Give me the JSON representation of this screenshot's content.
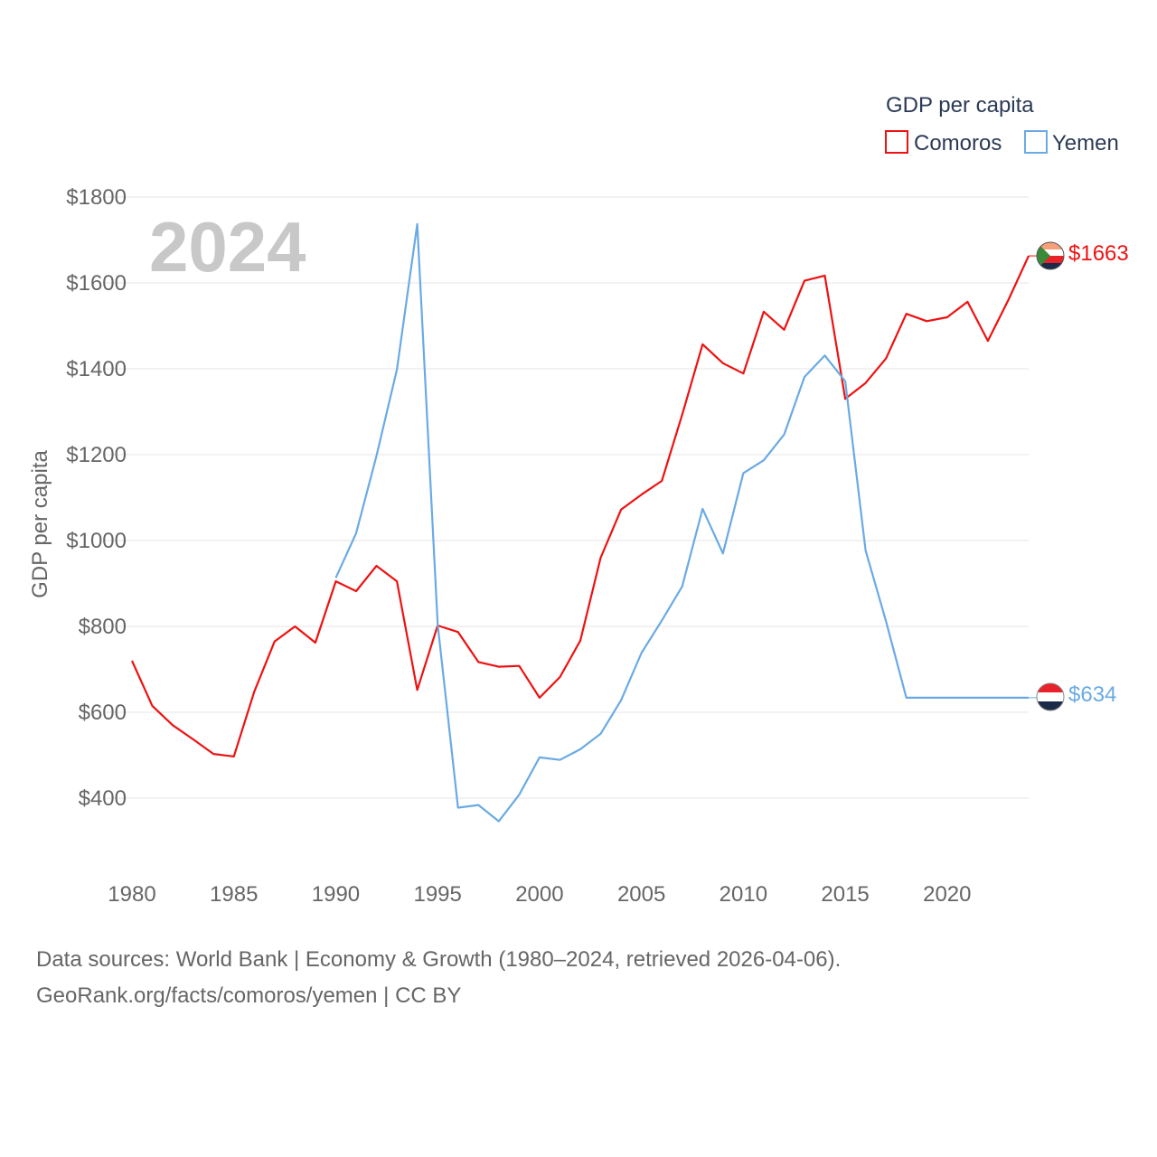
{
  "chart_data": {
    "type": "line",
    "title": "GDP per capita",
    "ylabel": "GDP per capita",
    "xlabel": "",
    "current_year_label": "2024",
    "xlim": [
      1980,
      2024
    ],
    "ylim": [
      290,
      1830
    ],
    "y_ticks": [
      400,
      600,
      800,
      1000,
      1200,
      1400,
      1600,
      1800
    ],
    "y_tick_labels": [
      "$400",
      "$600",
      "$800",
      "$1000",
      "$1200",
      "$1400",
      "$1600",
      "$1800"
    ],
    "x_ticks": [
      1980,
      1985,
      1990,
      1995,
      2000,
      2005,
      2010,
      2015,
      2020
    ],
    "x_tick_labels": [
      "1980",
      "1985",
      "1990",
      "1995",
      "2000",
      "2005",
      "2010",
      "2015",
      "2020"
    ],
    "grid": true,
    "legend_position": "top-right",
    "series": [
      {
        "name": "Comoros",
        "color": "#ee1111",
        "end_label": "$1663",
        "x": [
          1980,
          1981,
          1982,
          1983,
          1984,
          1985,
          1986,
          1987,
          1988,
          1989,
          1990,
          1991,
          1992,
          1993,
          1994,
          1995,
          1996,
          1997,
          1998,
          1999,
          2000,
          2001,
          2002,
          2003,
          2004,
          2005,
          2006,
          2007,
          2008,
          2009,
          2010,
          2011,
          2012,
          2013,
          2014,
          2015,
          2016,
          2017,
          2018,
          2019,
          2020,
          2021,
          2022,
          2023,
          2024
        ],
        "values": [
          720,
          615,
          570,
          537,
          503,
          497,
          648,
          765,
          800,
          762,
          905,
          882,
          941,
          905,
          652,
          802,
          787,
          717,
          706,
          708,
          634,
          682,
          767,
          960,
          1072,
          1107,
          1139,
          1293,
          1457,
          1413,
          1389,
          1533,
          1491,
          1605,
          1617,
          1330,
          1367,
          1424,
          1528,
          1511,
          1520,
          1556,
          1465,
          1560,
          1663
        ]
      },
      {
        "name": "Yemen",
        "color": "#6aaae4",
        "end_label": "$634",
        "x": [
          1990,
          1991,
          1992,
          1993,
          1994,
          1995,
          1996,
          1997,
          1998,
          1999,
          2000,
          2001,
          2002,
          2003,
          2004,
          2005,
          2006,
          2007,
          2008,
          2009,
          2010,
          2011,
          2012,
          2013,
          2014,
          2015,
          2016,
          2017,
          2018,
          2019,
          2020,
          2021,
          2022,
          2023,
          2024
        ],
        "values": [
          913,
          1017,
          1197,
          1398,
          1737,
          805,
          378,
          384,
          346,
          408,
          495,
          489,
          514,
          550,
          628,
          738,
          814,
          893,
          1074,
          970,
          1157,
          1187,
          1247,
          1381,
          1431,
          1371,
          977,
          812,
          634,
          634,
          634,
          634,
          634,
          634,
          634
        ]
      }
    ]
  },
  "legend": {
    "title": "GDP per capita",
    "items": [
      {
        "label": "Comoros",
        "color": "#ee1111"
      },
      {
        "label": "Yemen",
        "color": "#6aaae4"
      }
    ]
  },
  "footer": {
    "line1": "Data sources: World Bank | Economy & Growth (1980–2024, retrieved 2026-04-06).",
    "line2": "GeoRank.org/facts/comoros/yemen | CC BY"
  }
}
